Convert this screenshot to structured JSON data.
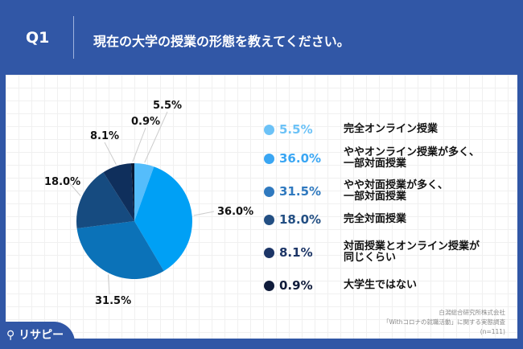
{
  "header": {
    "q": "Q1",
    "title": "現在の大学の授業の形態を教えてください。"
  },
  "chart_data": {
    "type": "pie",
    "values": [
      5.5,
      36.0,
      31.5,
      18.0,
      8.1,
      0.9
    ],
    "labels": [
      "5.5%",
      "36.0%",
      "31.5%",
      "18.0%",
      "8.1%",
      "0.9%"
    ],
    "categories": [
      "完全オンライン授業",
      "ややオンライン授業が多く、一部対面授業",
      "やや対面授業が多く、一部対面授業",
      "完全対面授業",
      "対面授業とオンライン授業が同じくらい",
      "大学生ではない"
    ],
    "colors": [
      "#55bdfb",
      "#00a0f5",
      "#0b72b8",
      "#164b80",
      "#0f2f5c",
      "#081a35"
    ],
    "legend_colors": [
      "#6cc2f7",
      "#3aa6f3",
      "#2f79bf",
      "#234f83",
      "#1c3566",
      "#0f1b3a"
    ]
  },
  "legend": [
    {
      "pct": "5.5%",
      "l1": "完全オンライン授業",
      "l2": ""
    },
    {
      "pct": "36.0%",
      "l1": "ややオンライン授業が多く、",
      "l2": "一部対面授業"
    },
    {
      "pct": "31.5%",
      "l1": "やや対面授業が多く、",
      "l2": "一部対面授業"
    },
    {
      "pct": "18.0%",
      "l1": "完全対面授業",
      "l2": ""
    },
    {
      "pct": "8.1%",
      "l1": "対面授業とオンライン授業が",
      "l2": "同じくらい"
    },
    {
      "pct": "0.9%",
      "l1": "大学生ではない",
      "l2": ""
    }
  ],
  "source": {
    "line1": "白潟総合研究所株式会社",
    "line2": "「Withコロナの就職活動」に関する実態調査",
    "line3": "(n=111)"
  },
  "logo": "リサピー"
}
